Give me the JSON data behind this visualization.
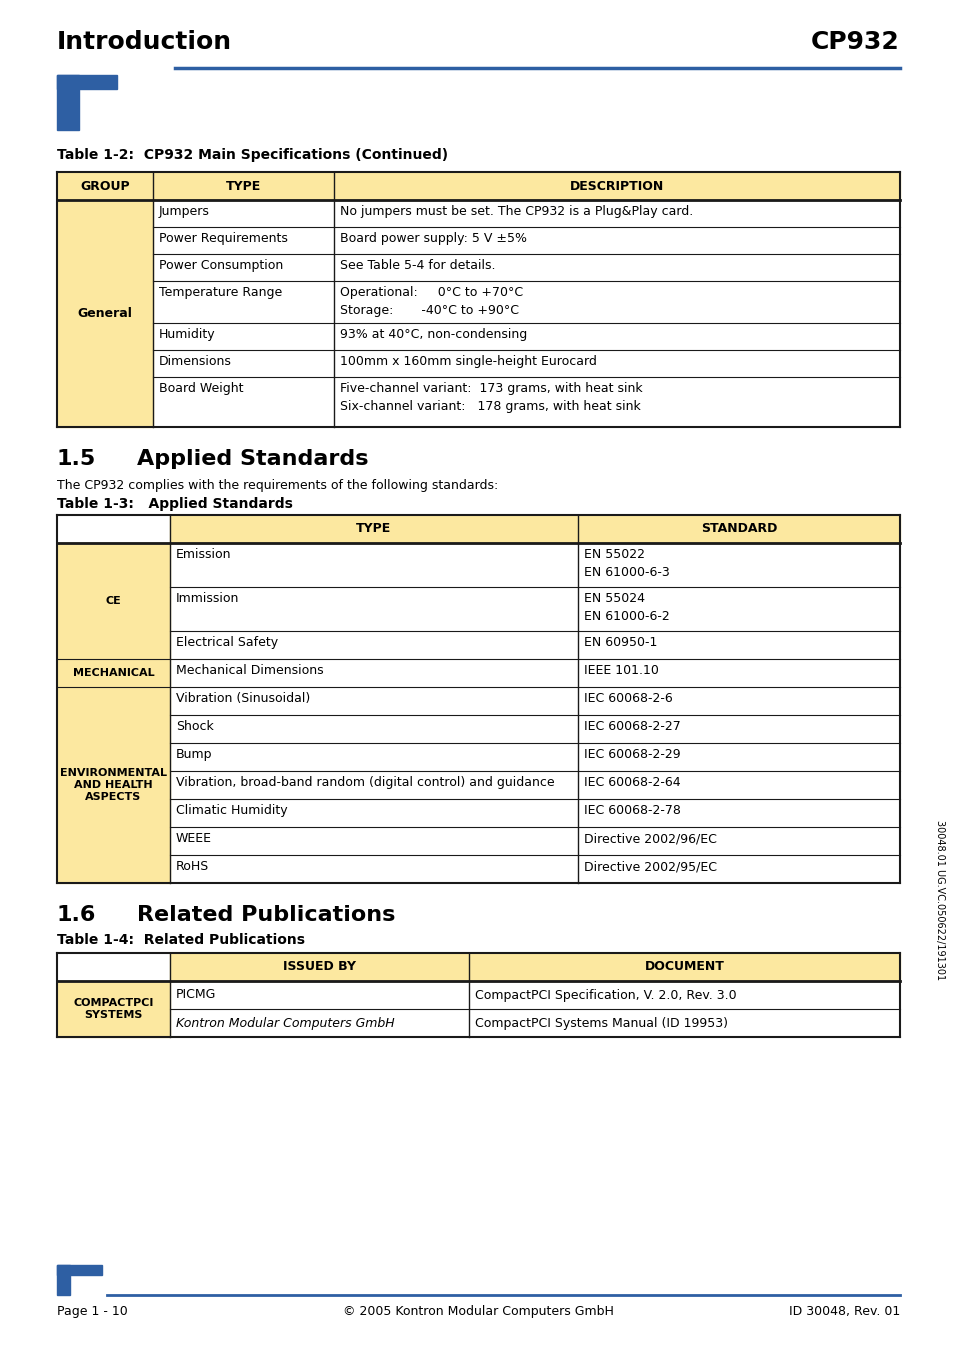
{
  "page_bg": "#ffffff",
  "header_title_left": "Introduction",
  "header_title_right": "CP932",
  "header_line_color": "#2e5fa3",
  "table1_caption": "Table 1-2:  CP932 Main Specifications (Continued)",
  "table1_header_bg": "#fce8a0",
  "table1_group_cell": "General",
  "table1_rows": [
    [
      "Jumpers",
      "No jumpers must be set. The CP932 is a Plug&Play card."
    ],
    [
      "Power Requirements",
      "Board power supply: 5 V ±5%"
    ],
    [
      "Power Consumption",
      "See Table 5-4 for details."
    ],
    [
      "Temperature Range",
      "Operational:     0°C to +70°C\nStorage:       -40°C to +90°C"
    ],
    [
      "Humidity",
      "93% at 40°C, non-condensing"
    ],
    [
      "Dimensions",
      "100mm x 160mm single-height Eurocard"
    ],
    [
      "Board Weight",
      "Five-channel variant:  173 grams, with heat sink\nSix-channel variant:   178 grams, with heat sink"
    ]
  ],
  "section15_title": "1.5",
  "section15_heading": "Applied Standards",
  "section15_body": "The CP932 complies with the requirements of the following standards:",
  "table2_caption": "Table 1-3:   Applied Standards",
  "t2_groups": [
    {
      "label": "CE",
      "rows": [
        [
          "Emission",
          "EN 55022\nEN 61000-6-3",
          44
        ],
        [
          "Immission",
          "EN 55024\nEN 61000-6-2",
          44
        ],
        [
          "Electrical Safety",
          "EN 60950-1",
          28
        ]
      ]
    },
    {
      "label": "MECHANICAL",
      "rows": [
        [
          "Mechanical Dimensions",
          "IEEE 101.10",
          28
        ]
      ]
    },
    {
      "label": "ENVIRONMENTAL\nAND HEALTH\nASPECTS",
      "rows": [
        [
          "Vibration (Sinusoidal)",
          "IEC 60068-2-6",
          28
        ],
        [
          "Shock",
          "IEC 60068-2-27",
          28
        ],
        [
          "Bump",
          "IEC 60068-2-29",
          28
        ],
        [
          "Vibration, broad-band random (digital control) and guidance",
          "IEC 60068-2-64",
          28
        ],
        [
          "Climatic Humidity",
          "IEC 60068-2-78",
          28
        ],
        [
          "WEEE",
          "Directive 2002/96/EC",
          28
        ],
        [
          "RoHS",
          "Directive 2002/95/EC",
          28
        ]
      ]
    }
  ],
  "section16_title": "1.6",
  "section16_heading": "Related Publications",
  "table3_caption": "Table 1-4:  Related Publications",
  "t3_rows": [
    [
      "PICMG",
      "CompactPCI Specification, V. 2.0, Rev. 3.0",
      false
    ],
    [
      "Kontron Modular Computers GmbH",
      "CompactPCI Systems Manual (ID 19953)",
      true
    ]
  ],
  "footer_left": "Page 1 - 10",
  "footer_center": "© 2005 Kontron Modular Computers GmbH",
  "footer_right": "ID 30048, Rev. 01",
  "sidebar_text": "30048.01 UG.VC.050622/191301",
  "border_color": "#1a1a1a",
  "group_cell_bg": "#fce8a0"
}
